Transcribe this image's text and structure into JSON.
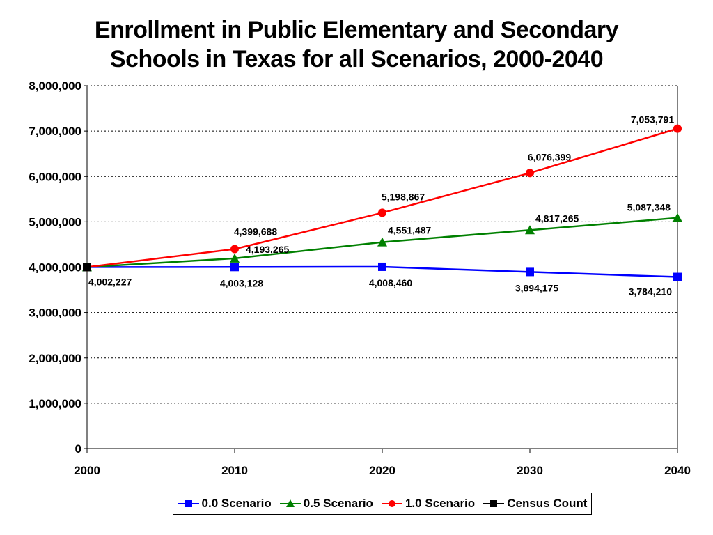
{
  "title_line1": "Enrollment in Public Elementary and Secondary",
  "title_line2": "Schools in Texas for all Scenarios, 2000-2040",
  "chart_data": {
    "type": "line",
    "x": [
      2000,
      2010,
      2020,
      2030,
      2040
    ],
    "xticks": [
      "2000",
      "2010",
      "2020",
      "2030",
      "2040"
    ],
    "ylim": [
      0,
      8000000
    ],
    "yticks": [
      "0",
      "1,000,000",
      "2,000,000",
      "3,000,000",
      "4,000,000",
      "5,000,000",
      "6,000,000",
      "7,000,000",
      "8,000,000"
    ],
    "grid": "horizontal dotted",
    "legend_position": "bottom",
    "series": [
      {
        "name": "0.0 Scenario",
        "color": "#0000ff",
        "marker": "square",
        "values": [
          4002227,
          4003128,
          4008460,
          3894175,
          3784210
        ],
        "labels": [
          "4,002,227",
          "4,003,128",
          "4,008,460",
          "3,894,175",
          "3,784,210"
        ]
      },
      {
        "name": "0.5 Scenario",
        "color": "#008000",
        "marker": "triangle",
        "values": [
          4002227,
          4193265,
          4551487,
          4817265,
          5087348
        ],
        "labels": [
          "",
          "4,193,265",
          "4,551,487",
          "4,817,265",
          "5,087,348"
        ]
      },
      {
        "name": "1.0 Scenario",
        "color": "#ff0000",
        "marker": "circle",
        "values": [
          4002227,
          4399688,
          5198867,
          6076399,
          7053791
        ],
        "labels": [
          "",
          "4,399,688",
          "5,198,867",
          "6,076,399",
          "7,053,791"
        ]
      },
      {
        "name": "Census Count",
        "color": "#000000",
        "marker": "square",
        "values": [
          4002227,
          null,
          null,
          null,
          null
        ],
        "labels": [
          "",
          "",
          "",
          "",
          ""
        ]
      }
    ]
  }
}
